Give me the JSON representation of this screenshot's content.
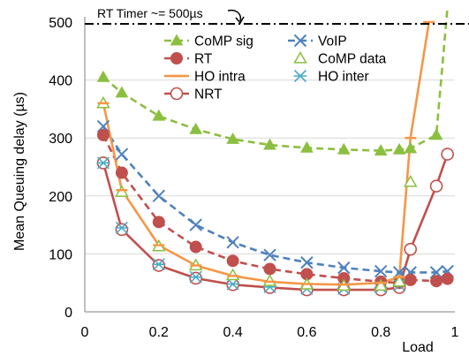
{
  "chart_data": {
    "type": "line",
    "xlabel": "Load",
    "ylabel": "Mean Queuing delay (µs)",
    "xlim": [
      0,
      1
    ],
    "ylim": [
      0,
      500
    ],
    "xticks": [
      "0",
      "0.2",
      "0.4",
      "0.6",
      "0.8",
      "1"
    ],
    "yticks": [
      "0",
      "100",
      "200",
      "300",
      "400",
      "500"
    ],
    "grid": "horizontal",
    "legend_placement": "top-center",
    "annotation": {
      "text": "RT Timer ~= 500µs",
      "y": 497
    },
    "series": [
      {
        "name": "CoMP sig",
        "color": "#8bbf3f",
        "style": "dashed",
        "marker": "filled-triangle",
        "x": [
          0.05,
          0.1,
          0.2,
          0.3,
          0.4,
          0.5,
          0.6,
          0.7,
          0.8,
          0.85,
          0.88,
          0.95,
          0.98
        ],
        "y": [
          405,
          378,
          338,
          315,
          298,
          288,
          283,
          280,
          278,
          280,
          282,
          305,
          525
        ]
      },
      {
        "name": "RT",
        "color": "#c0504d",
        "style": "dashed",
        "marker": "filled-circle",
        "x": [
          0.05,
          0.1,
          0.2,
          0.3,
          0.4,
          0.5,
          0.6,
          0.7,
          0.8,
          0.85,
          0.88,
          0.95,
          0.98
        ],
        "y": [
          305,
          240,
          155,
          112,
          88,
          74,
          65,
          58,
          52,
          50,
          55,
          53,
          57
        ]
      },
      {
        "name": "HO intra",
        "color": "#f79646",
        "style": "solid",
        "marker": "dash",
        "x": [
          0.05,
          0.1,
          0.2,
          0.3,
          0.4,
          0.5,
          0.6,
          0.7,
          0.8,
          0.85,
          0.88,
          0.93
        ],
        "y": [
          360,
          210,
          115,
          80,
          62,
          52,
          48,
          47,
          50,
          60,
          300,
          500
        ]
      },
      {
        "name": "NRT",
        "color": "#c0504d",
        "style": "solid",
        "marker": "open-circle",
        "x": [
          0.05,
          0.1,
          0.2,
          0.3,
          0.4,
          0.5,
          0.6,
          0.7,
          0.8,
          0.85,
          0.88,
          0.95,
          0.98
        ],
        "y": [
          257,
          142,
          80,
          58,
          47,
          42,
          38,
          38,
          38,
          42,
          108,
          217,
          272
        ]
      },
      {
        "name": "VoIP",
        "color": "#4f81bd",
        "style": "dashed",
        "marker": "x",
        "x": [
          0.05,
          0.1,
          0.2,
          0.3,
          0.4,
          0.5,
          0.6,
          0.7,
          0.8,
          0.85,
          0.88,
          0.95,
          0.98
        ],
        "y": [
          320,
          272,
          200,
          150,
          120,
          98,
          85,
          76,
          70,
          68,
          68,
          68,
          70
        ]
      },
      {
        "name": "CoMP data",
        "color": "#8bbf3f",
        "style": "none",
        "marker": "open-triangle",
        "x": [
          0.05,
          0.1,
          0.2,
          0.3,
          0.4,
          0.5,
          0.6,
          0.7,
          0.8,
          0.85,
          0.88
        ],
        "y": [
          360,
          207,
          113,
          80,
          63,
          53,
          47,
          45,
          45,
          52,
          224
        ]
      },
      {
        "name": "HO inter",
        "color": "#4bacc6",
        "style": "none",
        "marker": "asterisk",
        "x": [
          0.05,
          0.1,
          0.2,
          0.3,
          0.4,
          0.5,
          0.6,
          0.7,
          0.8,
          0.85
        ],
        "y": [
          257,
          145,
          82,
          60,
          48,
          43,
          40,
          40,
          42,
          46
        ]
      }
    ]
  }
}
